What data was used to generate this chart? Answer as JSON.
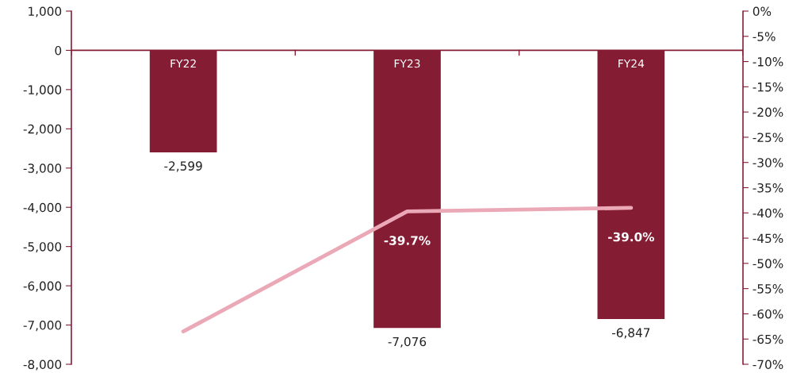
{
  "chart_data": {
    "type": "bar",
    "categories": [
      "FY22",
      "FY23",
      "FY24"
    ],
    "series": [
      {
        "color": "#841c34",
        "values": [
          -2599,
          -7076,
          -6847
        ],
        "value_labels": [
          "-2,599",
          "-7,076",
          "-6,847"
        ]
      },
      {
        "type": "line",
        "axis": "y2",
        "color": "#eba9b8",
        "values": [
          -63.5,
          -39.7,
          -39.0
        ],
        "value_labels": [
          null,
          "-39.7%",
          "-39.0%"
        ]
      }
    ],
    "ylim": [
      -8000,
      1000
    ],
    "yticks": [
      {
        "value": -8000,
        "label": "-8,000"
      },
      {
        "value": -7000,
        "label": "-7,000"
      },
      {
        "value": -6000,
        "label": "-6,000"
      },
      {
        "value": -5000,
        "label": "-5,000"
      },
      {
        "value": -4000,
        "label": "-4,000"
      },
      {
        "value": -3000,
        "label": "-3,000"
      },
      {
        "value": -2000,
        "label": "-2,000"
      },
      {
        "value": -1000,
        "label": "-1,000"
      },
      {
        "value": 0,
        "label": "0"
      },
      {
        "value": 1000,
        "label": "1,000"
      }
    ],
    "y2lim": [
      -70,
      0
    ],
    "y2ticks": [
      {
        "value": -70,
        "label": "-70%"
      },
      {
        "value": -65,
        "label": "-65%"
      },
      {
        "value": -60,
        "label": "-60%"
      },
      {
        "value": -55,
        "label": "-55%"
      },
      {
        "value": -50,
        "label": "-50%"
      },
      {
        "value": -45,
        "label": "-45%"
      },
      {
        "value": -40,
        "label": "-40%"
      },
      {
        "value": -35,
        "label": "-35%"
      },
      {
        "value": -30,
        "label": "-30%"
      },
      {
        "value": -25,
        "label": "-25%"
      },
      {
        "value": -20,
        "label": "-20%"
      },
      {
        "value": -15,
        "label": "-15%"
      },
      {
        "value": -10,
        "label": "-10%"
      },
      {
        "value": -5,
        "label": "-5%"
      },
      {
        "value": 0,
        "label": "0%"
      }
    ],
    "grid": false,
    "legend": false,
    "marker": "none",
    "line_style": "solid"
  }
}
